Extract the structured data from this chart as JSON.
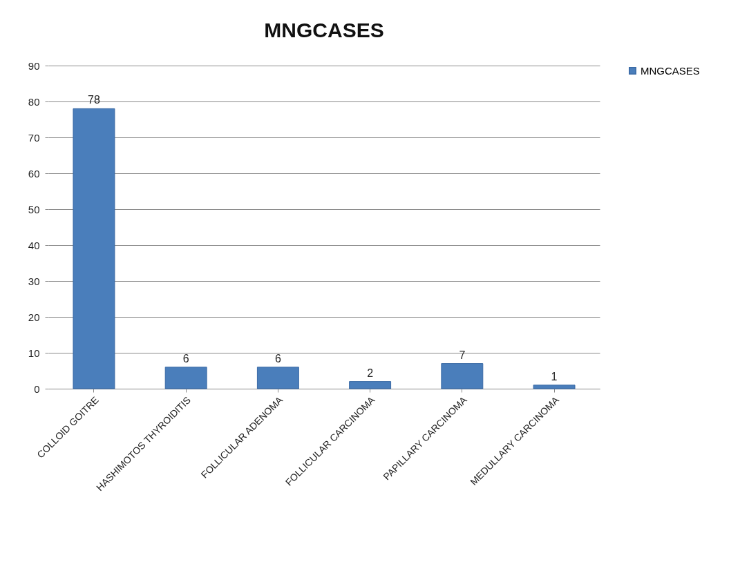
{
  "chart_data": {
    "type": "bar",
    "title": "MNGCASES",
    "categories": [
      "COLLOID GOITRE",
      "HASHIMOTOS THYROIDITIS",
      "FOLLICULAR ADENOMA",
      "FOLLICULAR CARCINOMA",
      "PAPILLARY CARCINOMA",
      "MEDULLARY CARCINOMA"
    ],
    "series": [
      {
        "name": "MNGCASES",
        "color": "#4a7ebb",
        "values": [
          78,
          6,
          6,
          2,
          7,
          1
        ]
      }
    ],
    "ylim": [
      0,
      90
    ],
    "yticks": [
      0,
      10,
      20,
      30,
      40,
      50,
      60,
      70,
      80,
      90
    ],
    "grid": "y",
    "legend": "right",
    "data_labels": true
  }
}
